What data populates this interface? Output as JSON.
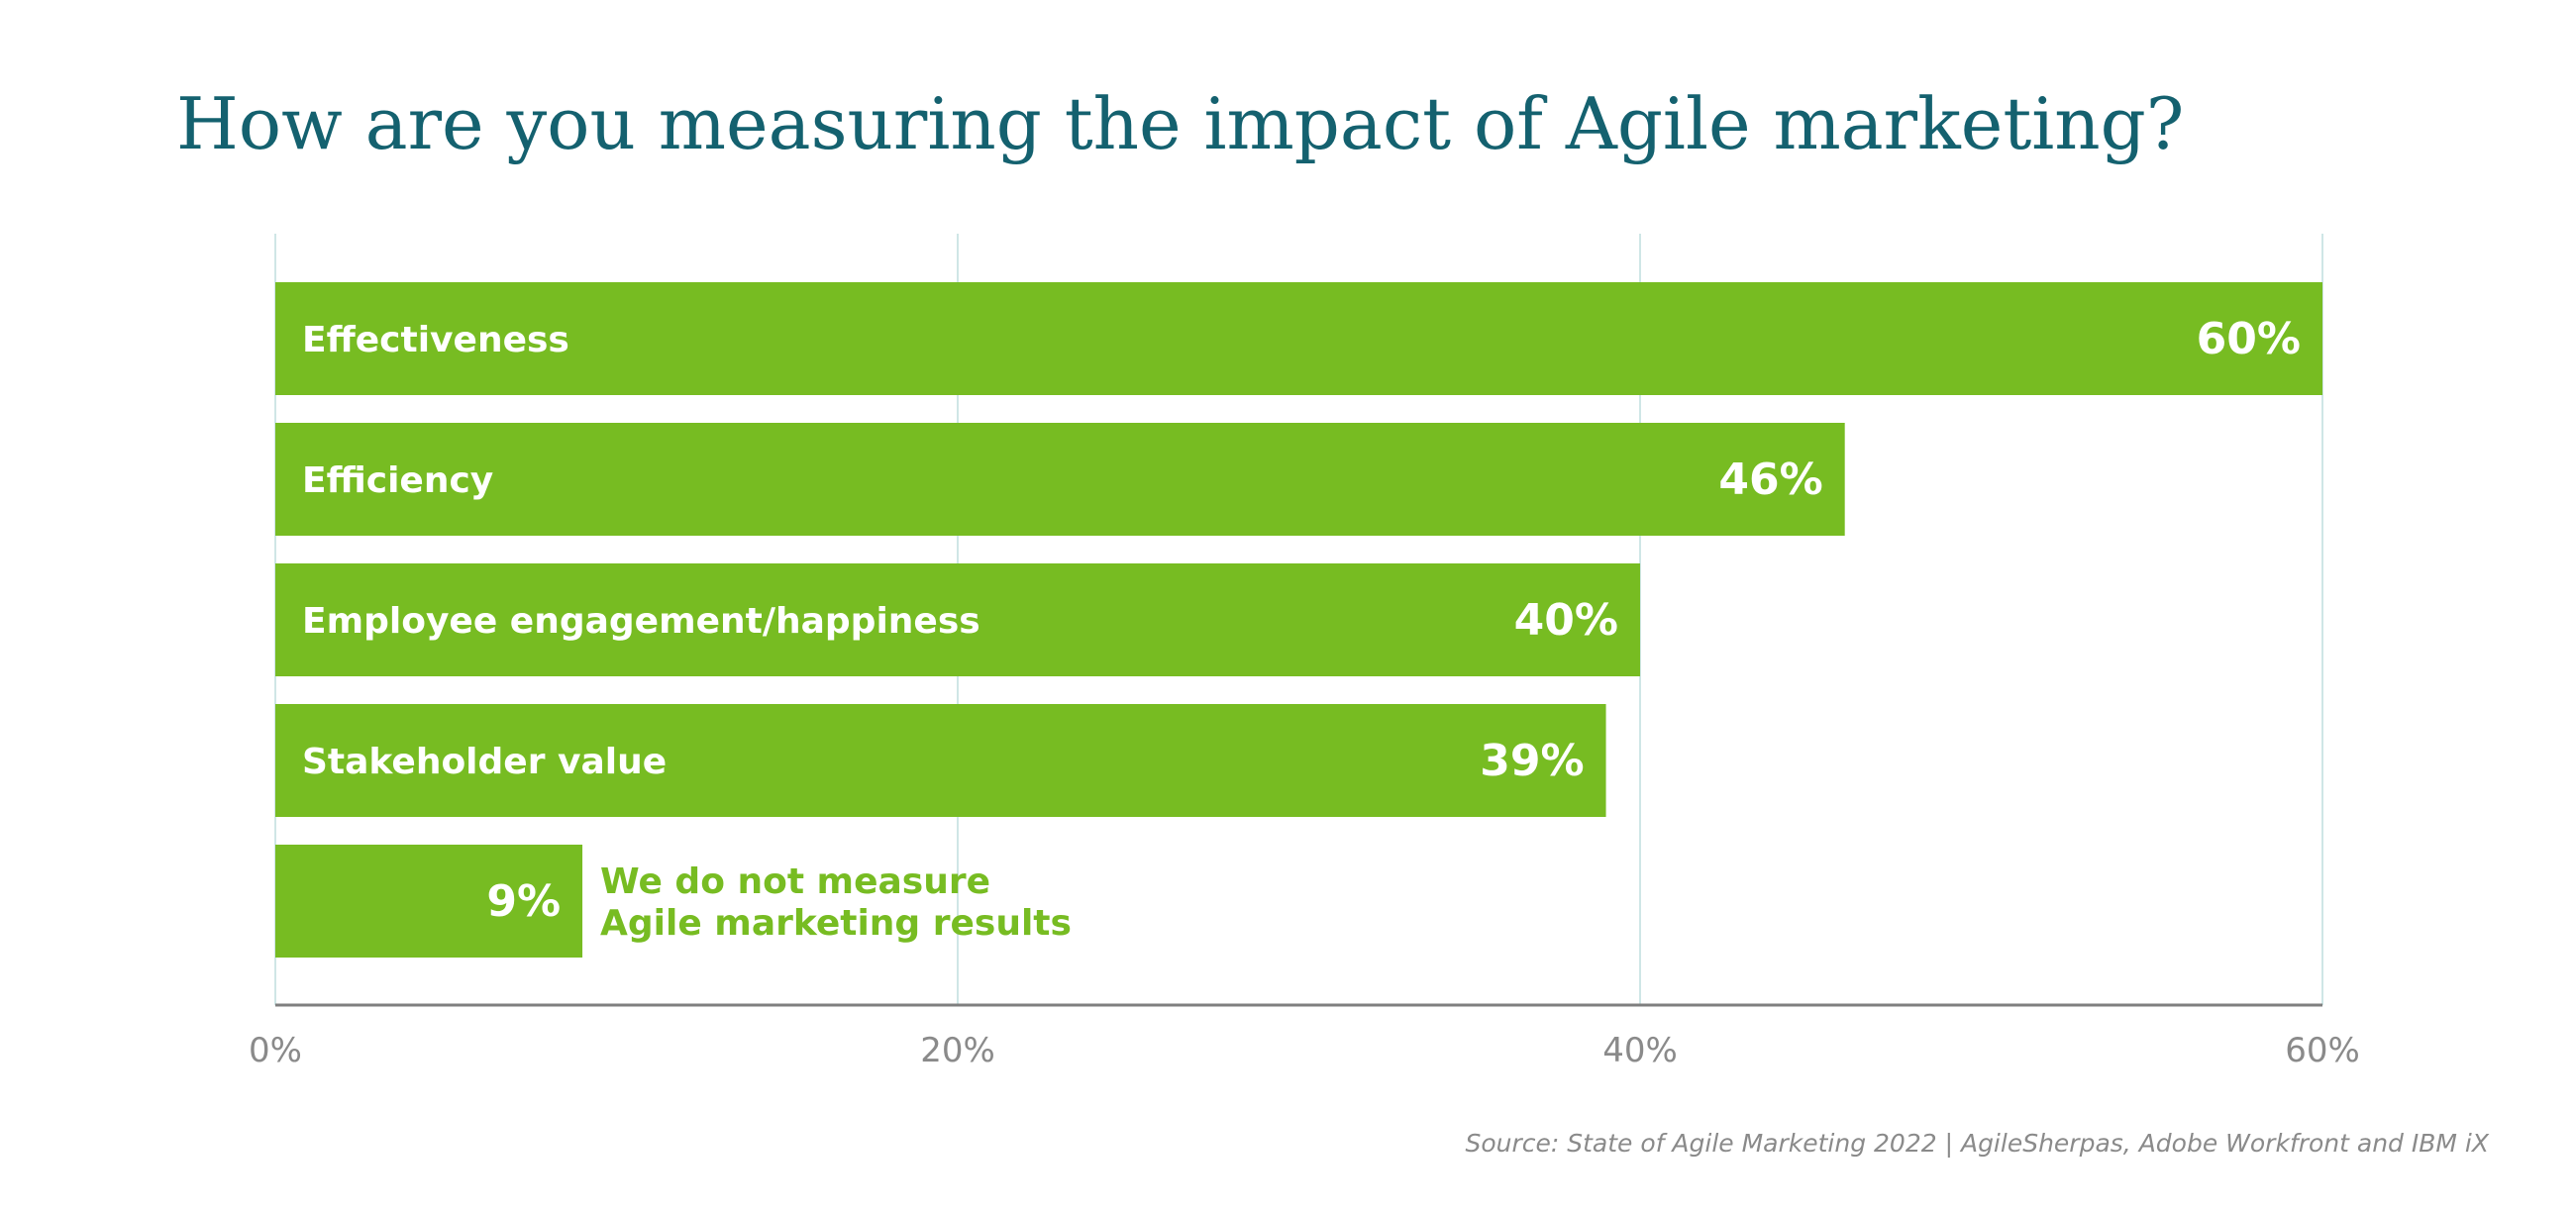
{
  "chart_data": {
    "type": "bar",
    "orientation": "horizontal",
    "title": "How are you measuring the impact of Agile marketing?",
    "categories": [
      "Effectiveness",
      "Efficiency",
      "Employee engagement/happiness",
      "Stakeholder value",
      "We do not measure Agile marketing results"
    ],
    "category_lines": [
      [
        "Effectiveness"
      ],
      [
        "Efficiency"
      ],
      [
        "Employee engagement/happiness"
      ],
      [
        "Stakeholder value"
      ],
      [
        "We do not measure",
        "Agile marketing results"
      ]
    ],
    "values": [
      60,
      46,
      40,
      39,
      9
    ],
    "value_labels": [
      "60%",
      "46%",
      "40%",
      "39%",
      "9%"
    ],
    "xlim": [
      0,
      60
    ],
    "x_ticks": [
      0,
      20,
      40,
      60
    ],
    "x_tick_labels": [
      "0%",
      "20%",
      "40%",
      "60%"
    ],
    "grid": true,
    "xlabel": "",
    "ylabel": "",
    "source": "Source: State of Agile Marketing 2022 | AgileSherpas, Adobe Workfront and IBM iX"
  },
  "colors": {
    "bar": "#77bc22",
    "title": "#14616f",
    "gridline": "#cfe6e6",
    "axis": "#7f7f7f",
    "tick_text": "#8a8a8a",
    "label_inside": "#ffffff",
    "label_outside": "#77bc22"
  }
}
